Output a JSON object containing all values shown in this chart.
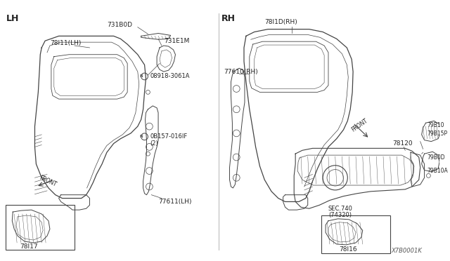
{
  "background_color": "#ffffff",
  "page_label": "X7B0001K",
  "lh_label": "LH",
  "rh_label": "RH",
  "line_color": "#444444",
  "label_color": "#222222",
  "font_size": 7,
  "font_size_header": 8
}
